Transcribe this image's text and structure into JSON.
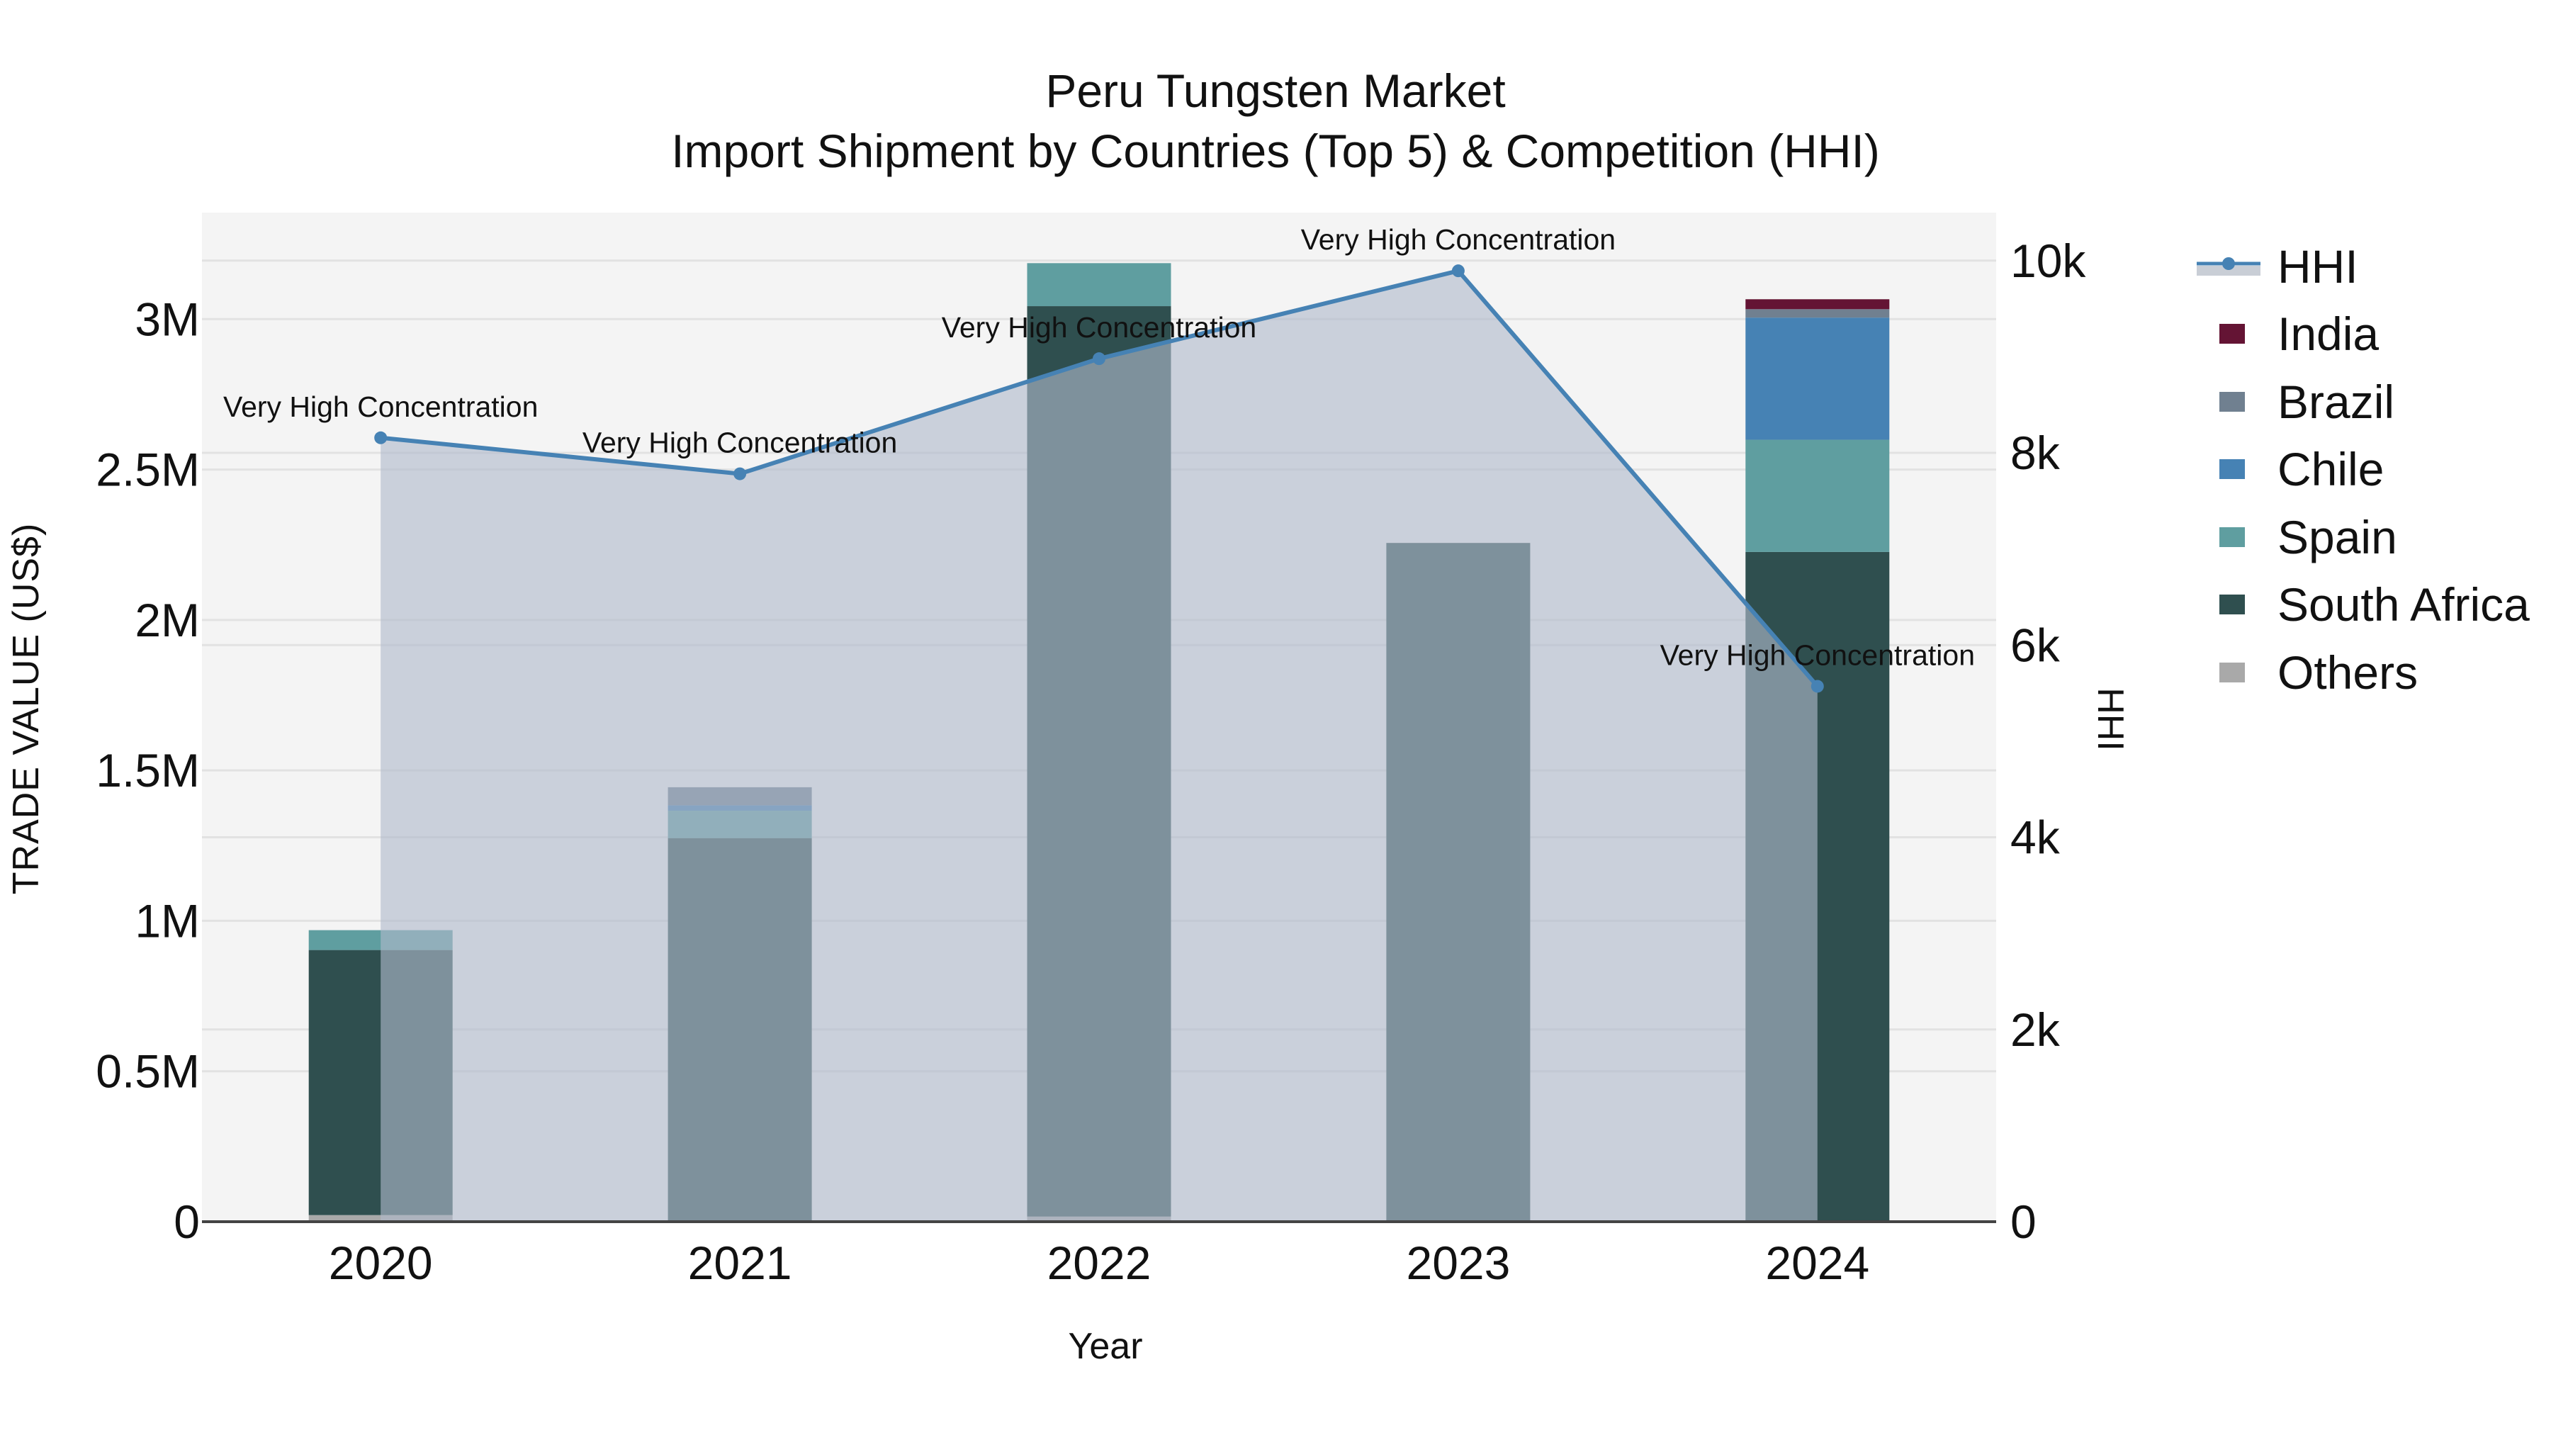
{
  "title": {
    "line1": "Peru Tungsten Market",
    "line2": "Import Shipment by Countries (Top 5) & Competition (HHI)"
  },
  "axes": {
    "x_title": "Year",
    "y_title": "TRADE VALUE (US$)",
    "y2_title": "HHI",
    "y_ticks": [
      {
        "value": 0,
        "label": "0"
      },
      {
        "value": 500000,
        "label": "0.5M"
      },
      {
        "value": 1000000,
        "label": "1M"
      },
      {
        "value": 1500000,
        "label": "1.5M"
      },
      {
        "value": 2000000,
        "label": "2M"
      },
      {
        "value": 2500000,
        "label": "2.5M"
      },
      {
        "value": 3000000,
        "label": "3M"
      }
    ],
    "y2_ticks": [
      {
        "value": 0,
        "label": "0"
      },
      {
        "value": 2000,
        "label": "2k"
      },
      {
        "value": 4000,
        "label": "4k"
      },
      {
        "value": 6000,
        "label": "6k"
      },
      {
        "value": 8000,
        "label": "8k"
      },
      {
        "value": 10000,
        "label": "10k"
      }
    ]
  },
  "legend": [
    {
      "name": "HHI",
      "type": "line",
      "color": "#4682B4",
      "fill": "#C9CED6"
    },
    {
      "name": "India",
      "type": "bar",
      "color": "#641434"
    },
    {
      "name": "Brazil",
      "type": "bar",
      "color": "#708090"
    },
    {
      "name": "Chile",
      "type": "bar",
      "color": "#4682B4"
    },
    {
      "name": "Spain",
      "type": "bar",
      "color": "#5F9EA0"
    },
    {
      "name": "South Africa",
      "type": "bar",
      "color": "#2F4F4F"
    },
    {
      "name": "Others",
      "type": "bar",
      "color": "#A9A9A9"
    }
  ],
  "chart_data": {
    "type": "bar",
    "subtype": "stacked bar with secondary-axis area line",
    "title": "Peru Tungsten Market - Import Shipment by Countries (Top 5) & Competition (HHI)",
    "xlabel": "Year",
    "ylabel": "TRADE VALUE (US$)",
    "y2label": "HHI",
    "categories": [
      "2020",
      "2021",
      "2022",
      "2023",
      "2024"
    ],
    "ylim": [
      0,
      3354000
    ],
    "y2lim": [
      0,
      10500
    ],
    "grid": true,
    "legend_position": "right",
    "stack_order_bottom_to_top": [
      "Others",
      "South Africa",
      "Spain",
      "Chile",
      "Brazil",
      "India"
    ],
    "series": [
      {
        "name": "Others",
        "color": "#A9A9A9",
        "values": [
          22000,
          0,
          17000,
          0,
          0
        ]
      },
      {
        "name": "South Africa",
        "color": "#2F4F4F",
        "values": [
          881000,
          1275000,
          3026000,
          2256000,
          2226000
        ]
      },
      {
        "name": "Spain",
        "color": "#5F9EA0",
        "values": [
          66000,
          91000,
          143000,
          0,
          373000
        ]
      },
      {
        "name": "Chile",
        "color": "#4682B4",
        "values": [
          0,
          18000,
          0,
          0,
          406000
        ]
      },
      {
        "name": "Brazil",
        "color": "#708090",
        "values": [
          0,
          60000,
          0,
          0,
          28000
        ]
      },
      {
        "name": "India",
        "color": "#641434",
        "values": [
          0,
          0,
          0,
          0,
          33000
        ]
      }
    ],
    "line_series": {
      "name": "HHI",
      "axis": "y2",
      "color": "#4682B4",
      "fill": "tozeroy",
      "values": [
        8157,
        7782,
        8980,
        9894,
        5571
      ],
      "annotations": [
        "Very High Concentration",
        "Very High Concentration",
        "Very High Concentration",
        "Very High Concentration",
        "Very High Concentration"
      ]
    }
  }
}
